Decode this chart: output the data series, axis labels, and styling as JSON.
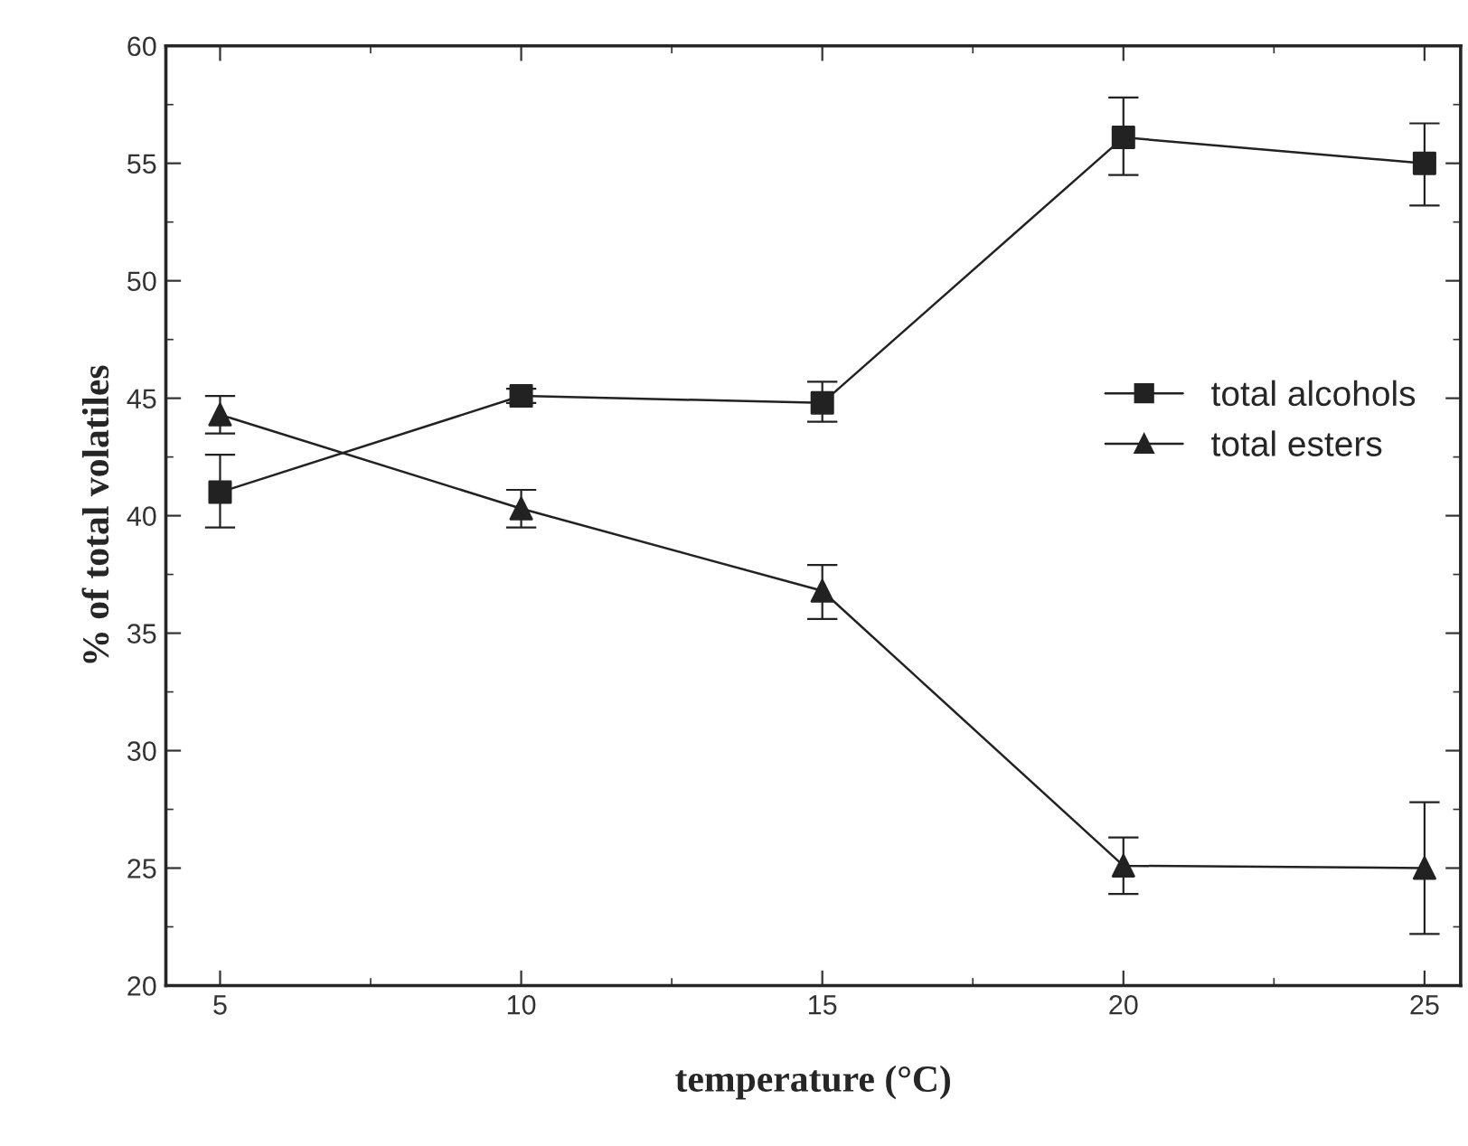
{
  "chart_data": {
    "type": "line",
    "xlabel": "temperature (°C)",
    "ylabel": "% of total volatiles",
    "x": [
      5,
      10,
      15,
      20,
      25
    ],
    "series": [
      {
        "name": "total alcohols",
        "color": "#222222",
        "marker": "square",
        "values": [
          41.0,
          45.1,
          44.8,
          56.1,
          55.0
        ],
        "errors": [
          [
            39.5,
            42.6
          ],
          [
            44.8,
            45.4
          ],
          [
            44.0,
            45.7
          ],
          [
            54.5,
            57.8
          ],
          [
            53.2,
            56.7
          ]
        ]
      },
      {
        "name": "total esters",
        "color": "#222222",
        "marker": "triangle",
        "values": [
          44.3,
          40.3,
          36.8,
          25.1,
          25.0
        ],
        "errors": [
          [
            43.5,
            45.1
          ],
          [
            39.5,
            41.1
          ],
          [
            35.6,
            37.9
          ],
          [
            23.9,
            26.3
          ],
          [
            22.2,
            27.8
          ]
        ]
      }
    ],
    "xlim": [
      4.1,
      25.6
    ],
    "xticks": [
      5,
      10,
      15,
      20,
      25
    ],
    "ylim": [
      20,
      60
    ],
    "yticks": [
      20,
      25,
      30,
      35,
      40,
      45,
      50,
      55,
      60
    ],
    "grid": false,
    "legend": "right",
    "line_style": "solid"
  }
}
